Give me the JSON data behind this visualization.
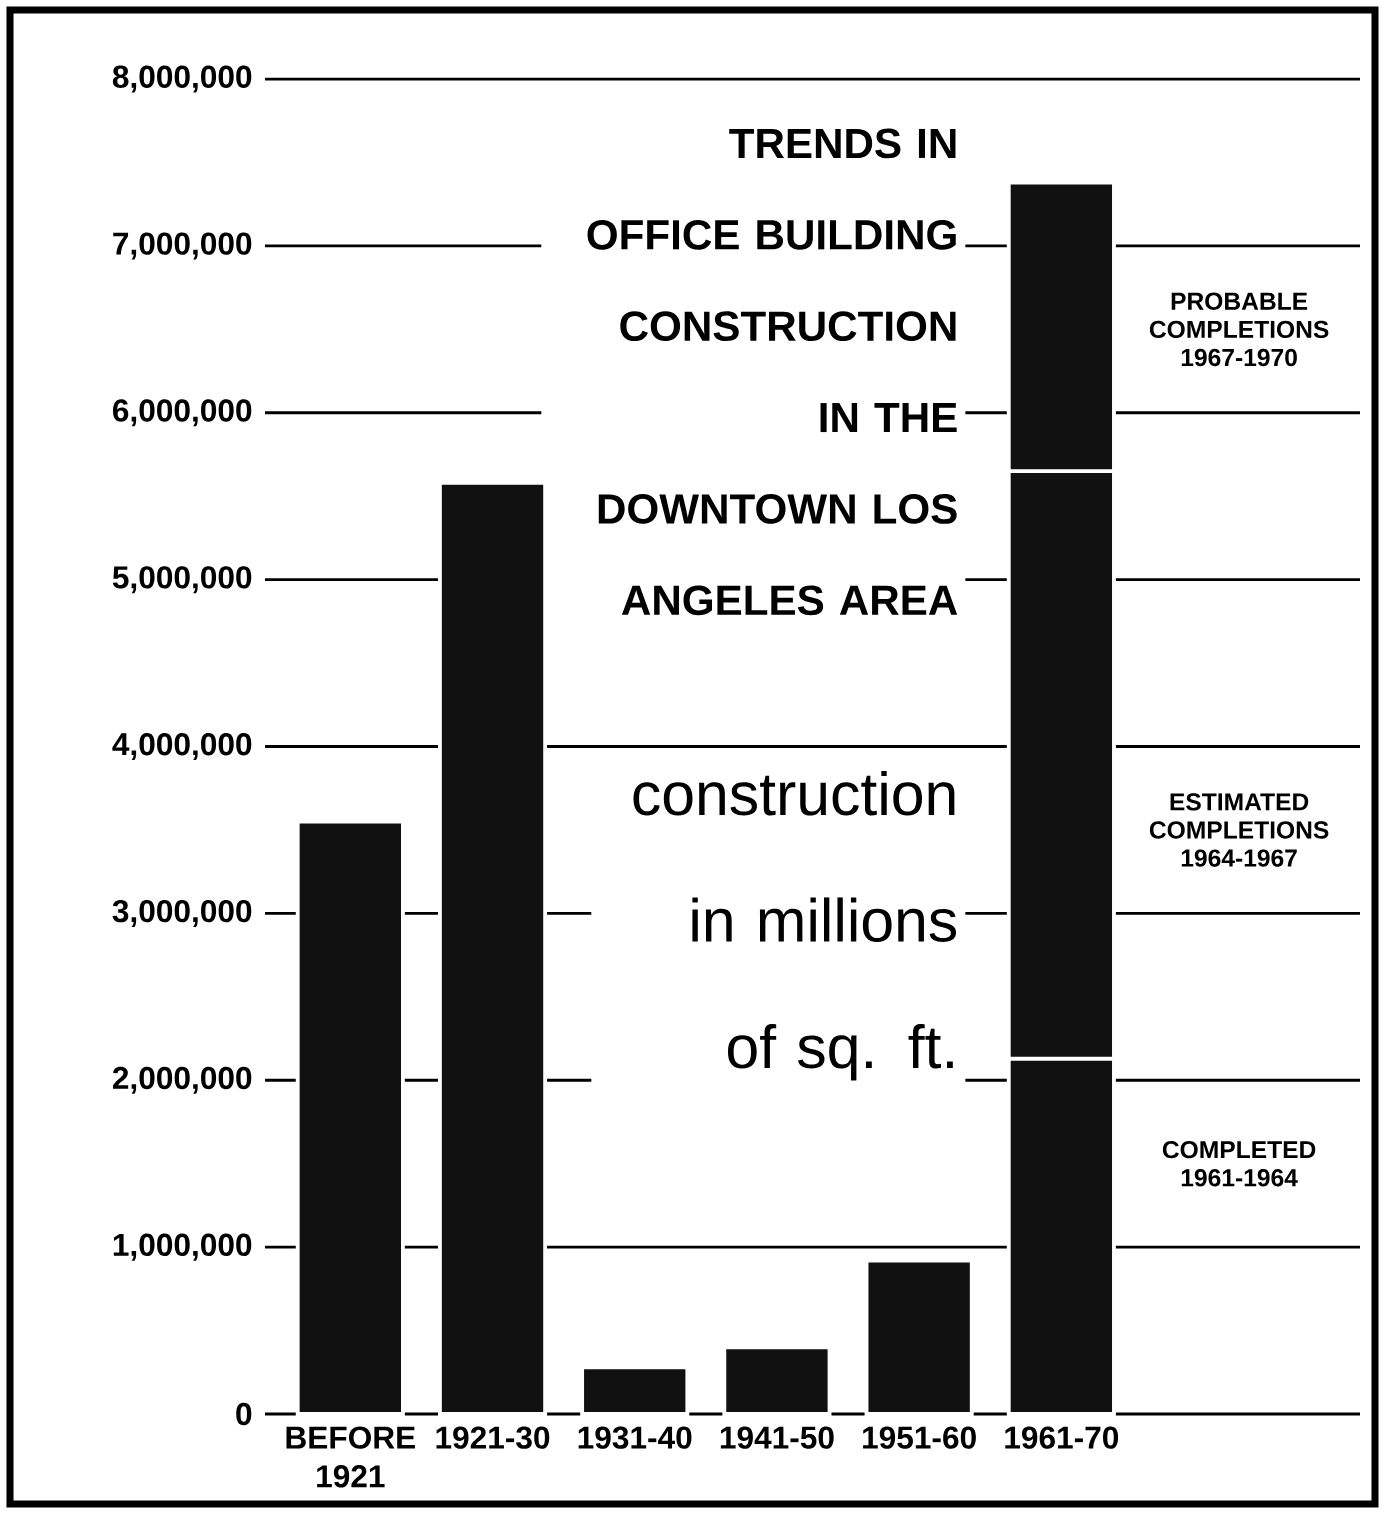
{
  "chart_data": {
    "type": "bar",
    "stacked": true,
    "title": "TRENDS IN OFFICE BUILDING CONSTRUCTION IN THE DOWNTOWN LOS ANGELES AREA",
    "subtitle": "construction in millions of sq. ft.",
    "categories": [
      "BEFORE 1921",
      "1921-30",
      "1931-40",
      "1941-50",
      "1951-60",
      "1961-70"
    ],
    "series": [
      {
        "color": "#111111",
        "values": [
          3550000,
          5580000,
          280000,
          400000,
          920000,
          null
        ]
      },
      {
        "name": "COMPLETED 1961-1964",
        "color": "#111111",
        "values": [
          null,
          null,
          null,
          null,
          null,
          2130000
        ]
      },
      {
        "name": "ESTIMATED COMPLETIONS 1964-1967",
        "color": "#111111",
        "values": [
          null,
          null,
          null,
          null,
          null,
          3520000
        ]
      },
      {
        "name": "PROBABLE COMPLETIONS 1967-1970",
        "color": "#111111",
        "values": [
          null,
          null,
          null,
          null,
          null,
          1730000
        ]
      }
    ],
    "ylim": [
      0,
      8000000
    ],
    "yticks": [
      0,
      {
        "value": 1000000,
        "label": "1,000,000"
      },
      {
        "value": 2000000,
        "label": "2,000,000"
      },
      {
        "value": 3000000,
        "label": "3,000,000"
      },
      {
        "value": 4000000,
        "label": "4,000,000"
      },
      {
        "value": 5000000,
        "label": "5,000,000"
      },
      {
        "value": 6000000,
        "label": "6,000,000"
      },
      {
        "value": 7000000,
        "label": "7,000,000"
      },
      {
        "value": 8000000,
        "label": "8,000,000"
      }
    ],
    "grid": "y"
  }
}
